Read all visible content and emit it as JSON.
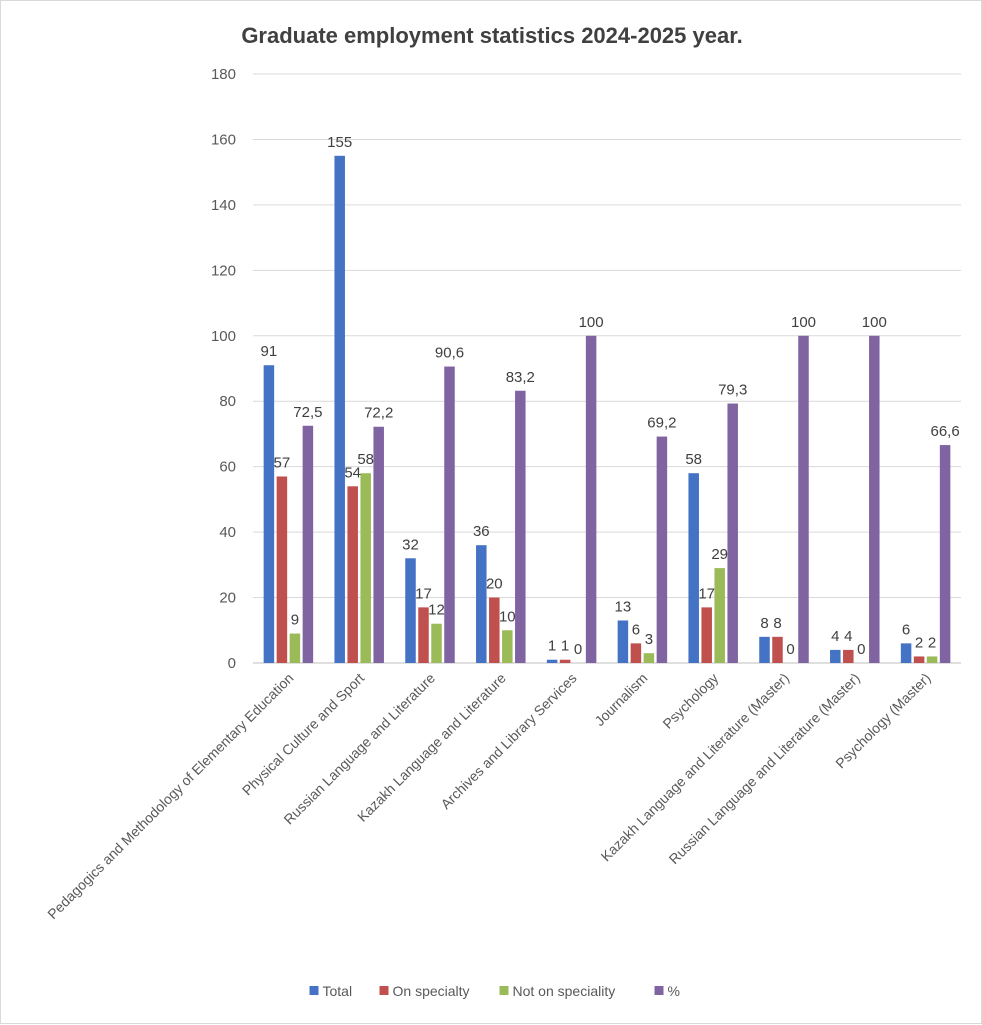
{
  "chart_data": {
    "type": "bar",
    "title": "Graduate   employment statistics 2024-2025 year.",
    "xlabel": "",
    "ylabel": "",
    "ylim": [
      0,
      180
    ],
    "yticks": [
      0,
      20,
      40,
      60,
      80,
      100,
      120,
      140,
      160,
      180
    ],
    "grid": true,
    "legend_position": "bottom",
    "categories": [
      "Pedagogics and Methodology of Elementary Education",
      "Physical Culture and Sport",
      "Russian Language and Literature",
      "Kazakh Language and Literature",
      "Archives and Library Services",
      "Journalism",
      "Psychology",
      "Kazakh Language and Literature (Master)",
      "Russian Language and Literature (Master)",
      "Psychology (Master)"
    ],
    "series": [
      {
        "name": "Total",
        "color": "#4472c4",
        "values": [
          91,
          155,
          32,
          36,
          1,
          13,
          58,
          8,
          4,
          6
        ],
        "labels": [
          "91",
          "155",
          "32",
          "36",
          "1",
          "13",
          "58",
          "8",
          "4",
          "6"
        ]
      },
      {
        "name": "On specialty",
        "color": "#c0504d",
        "values": [
          57,
          54,
          17,
          20,
          1,
          6,
          17,
          8,
          4,
          2
        ],
        "labels": [
          "57",
          "54",
          "17",
          "20",
          "1",
          "6",
          "17",
          "8",
          "4",
          "2"
        ]
      },
      {
        "name": "Not on speciality",
        "color": "#9bbb59",
        "values": [
          9,
          58,
          12,
          10,
          0,
          3,
          29,
          0,
          0,
          2
        ],
        "labels": [
          "9",
          "58",
          "12",
          "10",
          "0",
          "3",
          "29",
          "0",
          "0",
          "2"
        ]
      },
      {
        "name": "%",
        "color": "#8064a2",
        "values": [
          72.5,
          72.2,
          90.6,
          83.2,
          100,
          69.2,
          79.3,
          100,
          100,
          66.6
        ],
        "labels": [
          "72,5",
          "72,2",
          "90,6",
          "83,2",
          "100",
          "69,2",
          "79,3",
          "100",
          "100",
          "66,6"
        ]
      }
    ]
  }
}
